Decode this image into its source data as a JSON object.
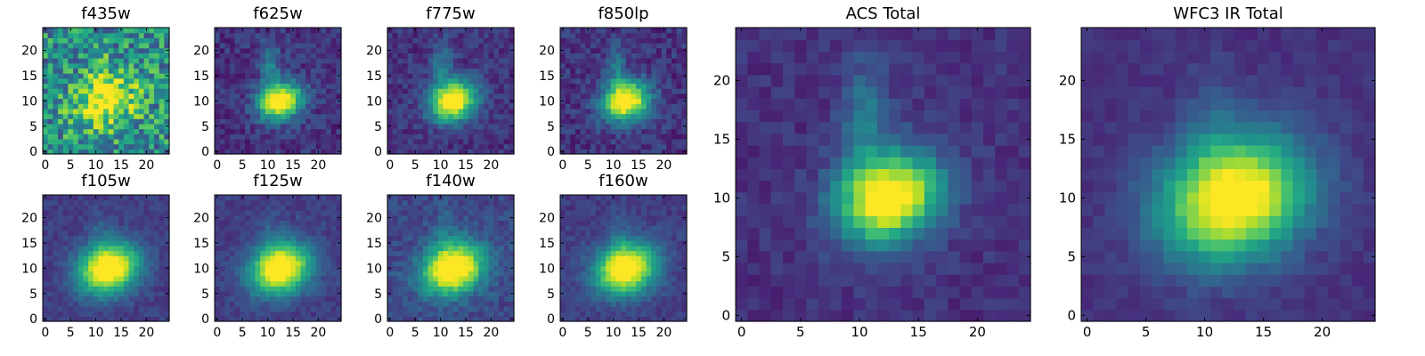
{
  "chart_data": [
    {
      "type": "heatmap",
      "title": "f435w",
      "xlim": [
        0,
        24
      ],
      "ylim": [
        0,
        24
      ],
      "xticks": [
        0,
        5,
        10,
        15,
        20
      ],
      "yticks": [
        0,
        5,
        10,
        15,
        20
      ],
      "colormap": "viridis",
      "center": [
        12,
        10
      ],
      "peak": 0.55,
      "noise": 0.55,
      "sigma": 4.0,
      "base": 0.48
    },
    {
      "type": "heatmap",
      "title": "f625w",
      "xlim": [
        0,
        24
      ],
      "ylim": [
        0,
        24
      ],
      "xticks": [
        0,
        5,
        10,
        15,
        20
      ],
      "yticks": [
        0,
        5,
        10,
        15,
        20
      ],
      "colormap": "viridis",
      "center": [
        12.5,
        10
      ],
      "peak": 1.0,
      "noise": 0.2,
      "sigma": 2.6,
      "base": 0.15
    },
    {
      "type": "heatmap",
      "title": "f775w",
      "xlim": [
        0,
        24
      ],
      "ylim": [
        0,
        24
      ],
      "xticks": [
        0,
        5,
        10,
        15,
        20
      ],
      "yticks": [
        0,
        5,
        10,
        15,
        20
      ],
      "colormap": "viridis",
      "center": [
        12.5,
        10
      ],
      "peak": 1.0,
      "noise": 0.18,
      "sigma": 2.8,
      "base": 0.15
    },
    {
      "type": "heatmap",
      "title": "f850lp",
      "xlim": [
        0,
        24
      ],
      "ylim": [
        0,
        24
      ],
      "xticks": [
        0,
        5,
        10,
        15,
        20
      ],
      "yticks": [
        0,
        5,
        10,
        15,
        20
      ],
      "colormap": "viridis",
      "center": [
        12.5,
        10
      ],
      "peak": 1.0,
      "noise": 0.2,
      "sigma": 2.8,
      "base": 0.15
    },
    {
      "type": "heatmap",
      "title": "f105w",
      "xlim": [
        0,
        24
      ],
      "ylim": [
        0,
        24
      ],
      "xticks": [
        0,
        5,
        10,
        15,
        20
      ],
      "yticks": [
        0,
        5,
        10,
        15,
        20
      ],
      "colormap": "viridis",
      "center": [
        12.5,
        10
      ],
      "peak": 1.0,
      "noise": 0.12,
      "sigma": 3.6,
      "base": 0.18
    },
    {
      "type": "heatmap",
      "title": "f125w",
      "xlim": [
        0,
        24
      ],
      "ylim": [
        0,
        24
      ],
      "xticks": [
        0,
        5,
        10,
        15,
        20
      ],
      "yticks": [
        0,
        5,
        10,
        15,
        20
      ],
      "colormap": "viridis",
      "center": [
        12.5,
        10
      ],
      "peak": 1.0,
      "noise": 0.12,
      "sigma": 3.6,
      "base": 0.18
    },
    {
      "type": "heatmap",
      "title": "f140w",
      "xlim": [
        0,
        24
      ],
      "ylim": [
        0,
        24
      ],
      "xticks": [
        0,
        5,
        10,
        15,
        20
      ],
      "yticks": [
        0,
        5,
        10,
        15,
        20
      ],
      "colormap": "viridis",
      "center": [
        12.5,
        10
      ],
      "peak": 1.0,
      "noise": 0.16,
      "sigma": 3.6,
      "base": 0.22
    },
    {
      "type": "heatmap",
      "title": "f160w",
      "xlim": [
        0,
        24
      ],
      "ylim": [
        0,
        24
      ],
      "xticks": [
        0,
        5,
        10,
        15,
        20
      ],
      "yticks": [
        0,
        5,
        10,
        15,
        20
      ],
      "colormap": "viridis",
      "center": [
        12.5,
        10
      ],
      "peak": 1.0,
      "noise": 0.12,
      "sigma": 3.6,
      "base": 0.18
    },
    {
      "type": "heatmap",
      "title": "ACS Total",
      "xlim": [
        0,
        24
      ],
      "ylim": [
        0,
        24
      ],
      "xticks": [
        0,
        5,
        10,
        15,
        20
      ],
      "yticks": [
        0,
        5,
        10,
        15,
        20
      ],
      "colormap": "viridis",
      "center": [
        12.5,
        10
      ],
      "peak": 1.0,
      "noise": 0.12,
      "sigma": 2.7,
      "base": 0.14
    },
    {
      "type": "heatmap",
      "title": "WFC3 IR Total",
      "xlim": [
        0,
        24
      ],
      "ylim": [
        0,
        24
      ],
      "xticks": [
        0,
        5,
        10,
        15,
        20
      ],
      "yticks": [
        0,
        5,
        10,
        15,
        20
      ],
      "colormap": "viridis",
      "center": [
        12.5,
        10
      ],
      "peak": 1.0,
      "noise": 0.08,
      "sigma": 3.8,
      "base": 0.14
    }
  ]
}
